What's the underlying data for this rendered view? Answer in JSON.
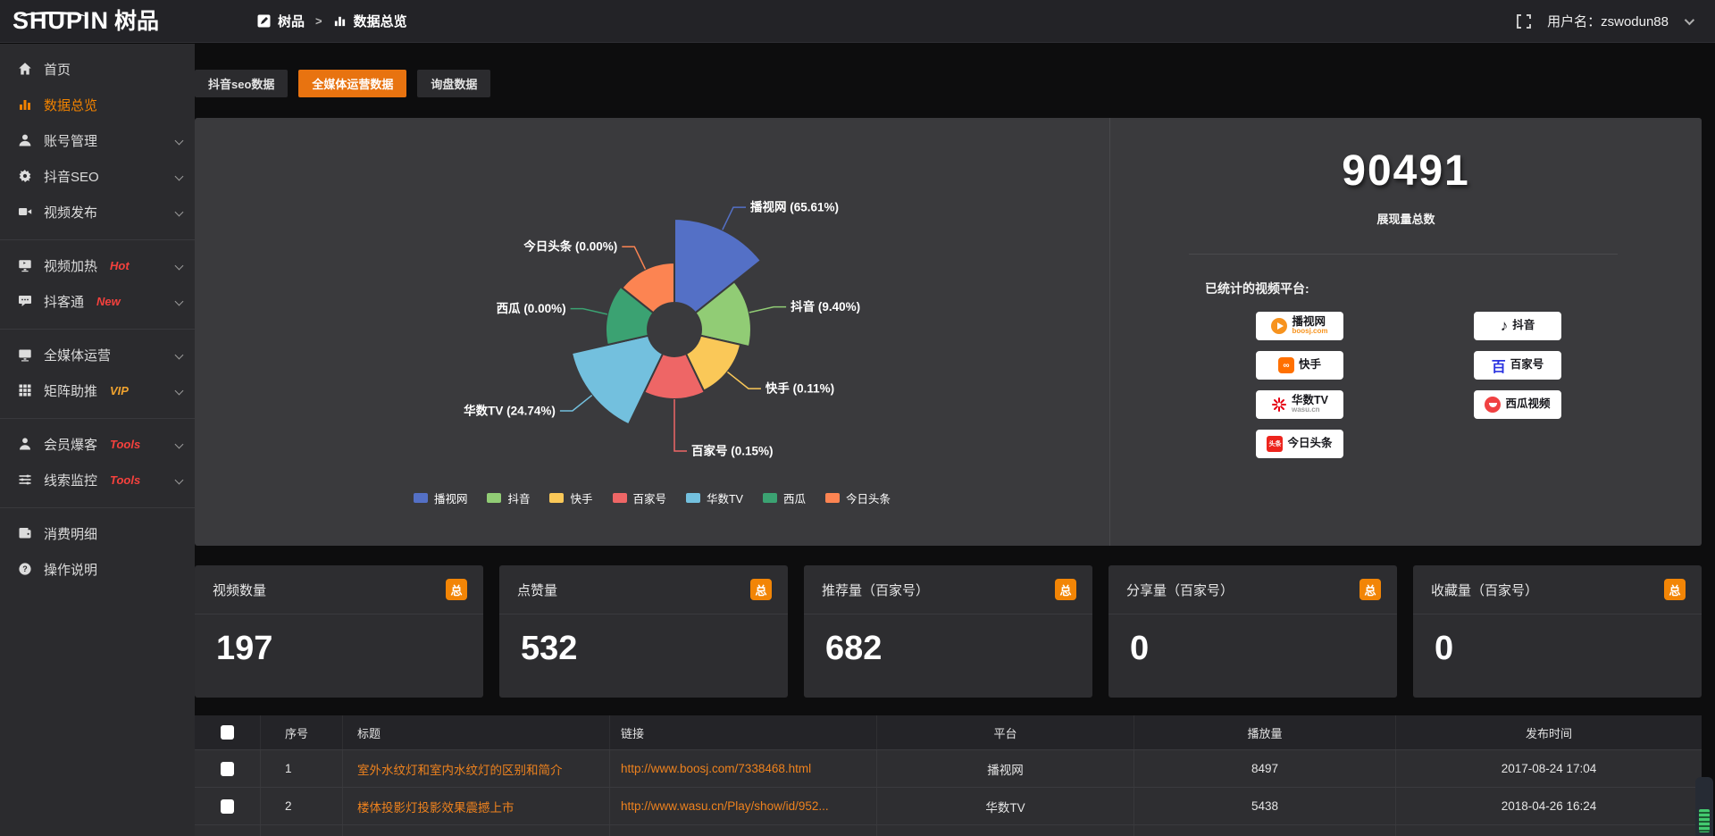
{
  "topbar": {
    "logo_en": "SHUPIN",
    "logo_cn": "树品",
    "breadcrumb": {
      "root": "树品",
      "separator": ">",
      "current": "数据总览"
    },
    "username_label": "用户名：",
    "username": "zswodun88"
  },
  "sidebar": {
    "groups": [
      {
        "items": [
          {
            "key": "home",
            "icon": "home-icon",
            "label": "首页"
          },
          {
            "key": "data-overview",
            "icon": "bar-chart-icon",
            "label": "数据总览",
            "active": true
          },
          {
            "key": "account",
            "icon": "user-icon",
            "label": "账号管理",
            "expandable": true
          },
          {
            "key": "douyin-seo",
            "icon": "gear-icon",
            "label": "抖音SEO",
            "expandable": true
          },
          {
            "key": "video-publish",
            "icon": "video-icon",
            "label": "视频发布",
            "expandable": true
          }
        ]
      },
      {
        "items": [
          {
            "key": "video-heat",
            "icon": "monitor-icon",
            "label": "视频加热",
            "tag": "Hot",
            "tag_color": "#f5413d",
            "expandable": true
          },
          {
            "key": "doukertong",
            "icon": "chat-icon",
            "label": "抖客通",
            "tag": "New",
            "tag_color": "#f5413d",
            "expandable": true
          }
        ]
      },
      {
        "items": [
          {
            "key": "media-ops",
            "icon": "screen-icon",
            "label": "全媒体运营",
            "expandable": true
          },
          {
            "key": "matrix-boost",
            "icon": "grid-icon",
            "label": "矩阵助推",
            "tag": "VIP",
            "tag_color": "#f0a32f",
            "expandable": true
          }
        ]
      },
      {
        "items": [
          {
            "key": "member-burst",
            "icon": "person-icon",
            "label": "会员爆客",
            "tag": "Tools",
            "tag_color": "#f5413d",
            "expandable": true
          },
          {
            "key": "clue-monitor",
            "icon": "sliders-icon",
            "label": "线索监控",
            "tag": "Tools",
            "tag_color": "#f5413d",
            "expandable": true
          }
        ]
      },
      {
        "items": [
          {
            "key": "consume-detail",
            "icon": "wallet-icon",
            "label": "消费明细"
          },
          {
            "key": "help",
            "icon": "question-icon",
            "label": "操作说明"
          }
        ]
      }
    ]
  },
  "tabs": [
    {
      "key": "douyin-seo-data",
      "label": "抖音seo数据",
      "active": false
    },
    {
      "key": "media-ops-data",
      "label": "全媒体运营数据",
      "active": true
    },
    {
      "key": "inquiry-data",
      "label": "询盘数据",
      "active": false
    }
  ],
  "chart_data": {
    "type": "pie",
    "variant": "nightingale-rose",
    "title": "",
    "label_format": "{name} ({pct}%)",
    "legend_position": "bottom",
    "start_angle_deg": 0,
    "items": [
      {
        "name": "播视网",
        "pct": 65.61,
        "color": "#5470c6",
        "radius": 124
      },
      {
        "name": "抖音",
        "pct": 9.4,
        "color": "#91cc75",
        "radius": 86
      },
      {
        "name": "快手",
        "pct": 0.11,
        "color": "#fac858",
        "radius": 76,
        "label_ext": 30
      },
      {
        "name": "百家号",
        "pct": 0.15,
        "color": "#ee6666",
        "radius": 78,
        "label_ext": 58
      },
      {
        "name": "华数TV",
        "pct": 24.74,
        "color": "#73c0de",
        "radius": 118
      },
      {
        "name": "西瓜",
        "pct": 0.0,
        "color": "#3ba272",
        "radius": 77
      },
      {
        "name": "今日头条",
        "pct": 0.0,
        "color": "#fc8452",
        "radius": 75
      }
    ]
  },
  "summary": {
    "total_value": "90491",
    "total_label": "展现量总数",
    "platforms_label": "已统计的视频平台:",
    "platform_columns": [
      [
        {
          "name": "播视网",
          "sub": "boosj.com",
          "sub_color": "#f7931e",
          "icon": "boosj"
        },
        {
          "name": "快手",
          "icon": "kuaishou"
        },
        {
          "name": "华数TV",
          "sub": "wasu.cn",
          "sub_color": "#9a9a9a",
          "icon": "wasu"
        },
        {
          "name": "今日头条",
          "icon": "toutiao"
        }
      ],
      [
        {
          "name": "抖音",
          "icon": "douyin"
        },
        {
          "name": "百家号",
          "icon": "baijia"
        },
        {
          "name": "西瓜视频",
          "icon": "xigua"
        }
      ]
    ]
  },
  "stat_cards": [
    {
      "label": "视频数量",
      "badge": "总",
      "value": "197"
    },
    {
      "label": "点赞量",
      "badge": "总",
      "value": "532"
    },
    {
      "label": "推荐量（百家号）",
      "badge": "总",
      "value": "682"
    },
    {
      "label": "分享量（百家号）",
      "badge": "总",
      "value": "0"
    },
    {
      "label": "收藏量（百家号）",
      "badge": "总",
      "value": "0"
    }
  ],
  "table": {
    "columns": [
      "",
      "序号",
      "标题",
      "链接",
      "平台",
      "播放量",
      "发布时间"
    ],
    "rows": [
      {
        "seq": "1",
        "title": "室外水纹灯和室内水纹灯的区别和简介",
        "link": "http://www.boosj.com/7338468.html",
        "platform": "播视网",
        "views": "8497",
        "time": "2017-08-24 17:04"
      },
      {
        "seq": "2",
        "title": "楼体投影灯投影效果震撼上市",
        "link": "http://www.wasu.cn/Play/show/id/952...",
        "platform": "华数TV",
        "views": "5438",
        "time": "2018-04-26 16:24"
      }
    ]
  },
  "colors": {
    "accent": "#e87310",
    "badge": "#f28506",
    "link": "#ee821e",
    "active_menu": "#f08200"
  }
}
